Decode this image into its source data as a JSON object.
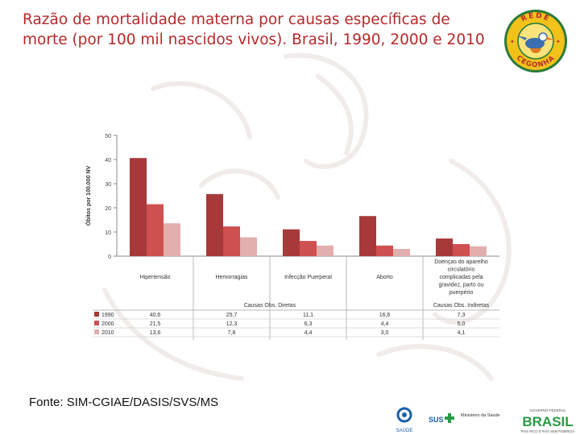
{
  "slide": {
    "title": "Razão de mortalidade materna por causas específicas de morte (por 100 mil nascidos vivos). Brasil, 1990, 2000 e 2010",
    "source": "Fonte: SIM-CGIAE/DASIS/SVS/MS"
  },
  "logo": {
    "top_text": "REDE",
    "bottom_text": "CEGONHA",
    "colors": {
      "ring": "#2b7a3a",
      "fill": "#f2c21b",
      "text": "#b52a2a",
      "bird": "#3a6fb0"
    }
  },
  "footer": {
    "saude": "SAÚDE",
    "sus": "SUS",
    "ministerio": "Ministério da Saúde",
    "brasil": "BRASIL",
    "governo": "GOVERNO FEDERAL",
    "slogan": "PAÍS RICO É PAÍS SEM POBREZA"
  },
  "chart_data": {
    "type": "bar",
    "ylabel": "Óbitos por 100.000 NV",
    "ylim": [
      0,
      50
    ],
    "yticks": [
      0,
      10,
      20,
      30,
      40,
      50
    ],
    "categories": [
      "Hipertensão",
      "Hemorragias",
      "Infecção Puerperal",
      "Aborto",
      "Doenças do aparelho circulatório complicadas pela gravidez, parto ou puerpério"
    ],
    "category_lines": [
      [
        "Hipertensão"
      ],
      [
        "Hemorragias"
      ],
      [
        "Infecção Puerperal"
      ],
      [
        "Aborto"
      ],
      [
        "Doenças do aparelho",
        "circulatório",
        "complicadas pela",
        "gravidez, parto ou",
        "puerpério"
      ]
    ],
    "groups": [
      {
        "label": "Causas Obs. Diretas",
        "span": [
          0,
          3
        ]
      },
      {
        "label": "Causas Obs. Indiretas",
        "span": [
          4,
          4
        ]
      }
    ],
    "series": [
      {
        "name": "1990",
        "color": "#a8393a",
        "values": [
          40.6,
          25.7,
          11.1,
          16.6,
          7.3
        ],
        "labels": [
          "40,6",
          "25,7",
          "11,1",
          "16,6",
          "7,3"
        ]
      },
      {
        "name": "2000",
        "color": "#cf5050",
        "values": [
          21.5,
          12.3,
          6.3,
          4.4,
          5.0
        ],
        "labels": [
          "21,5",
          "12,3",
          "6,3",
          "4,4",
          "5,0"
        ]
      },
      {
        "name": "2010",
        "color": "#e2aeae",
        "values": [
          13.6,
          7.8,
          4.4,
          3.0,
          4.1
        ],
        "labels": [
          "13,6",
          "7,8",
          "4,4",
          "3,0",
          "4,1"
        ]
      }
    ],
    "grid": false,
    "legend": "table-below"
  }
}
